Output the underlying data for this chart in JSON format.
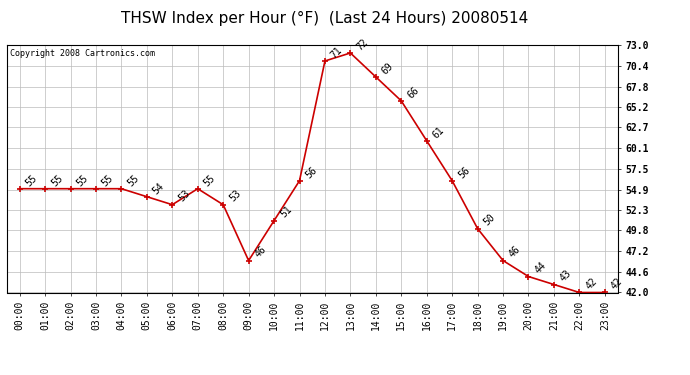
{
  "title": "THSW Index per Hour (°F)  (Last 24 Hours) 20080514",
  "copyright": "Copyright 2008 Cartronics.com",
  "hours": [
    0,
    1,
    2,
    3,
    4,
    5,
    6,
    7,
    8,
    9,
    10,
    11,
    12,
    13,
    14,
    15,
    16,
    17,
    18,
    19,
    20,
    21,
    22,
    23
  ],
  "values": [
    55,
    55,
    55,
    55,
    55,
    54,
    53,
    55,
    53,
    46,
    51,
    56,
    71,
    72,
    69,
    66,
    61,
    56,
    50,
    46,
    44,
    43,
    42,
    42
  ],
  "line_color": "#cc0000",
  "marker_color": "#cc0000",
  "bg_color": "#ffffff",
  "grid_color": "#bbbbbb",
  "ylim": [
    42.0,
    73.0
  ],
  "yticks": [
    42.0,
    44.6,
    47.2,
    49.8,
    52.3,
    54.9,
    57.5,
    60.1,
    62.7,
    65.2,
    67.8,
    70.4,
    73.0
  ],
  "title_fontsize": 11,
  "copyright_fontsize": 6,
  "axis_fontsize": 7,
  "annot_fontsize": 7
}
